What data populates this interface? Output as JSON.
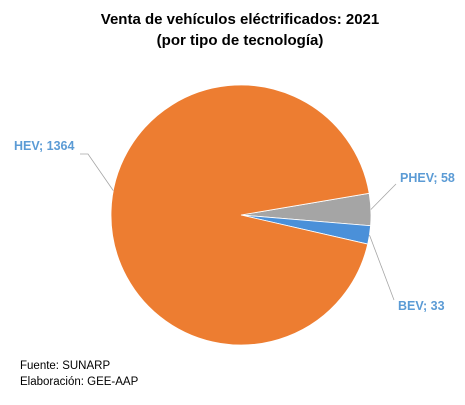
{
  "chart_data": {
    "type": "pie",
    "title_lines": [
      "Venta de vehículos eléctrificados: 2021",
      "(por tipo de tecnología)"
    ],
    "slices": [
      {
        "name": "PHEV",
        "value": 58,
        "label": "PHEV; 58",
        "color": "#a5a5a5"
      },
      {
        "name": "BEV",
        "value": 33,
        "label": "BEV; 33",
        "color": "#4a90d9"
      },
      {
        "name": "HEV",
        "value": 1364,
        "label": "HEV; 1364",
        "color": "#ed7d31"
      }
    ],
    "label_color": "#5b9bd5",
    "leader_line_color": "#a6a6a6"
  },
  "footnotes": [
    "Fuente: SUNARP",
    "Elaboración: GEE-AAP"
  ]
}
